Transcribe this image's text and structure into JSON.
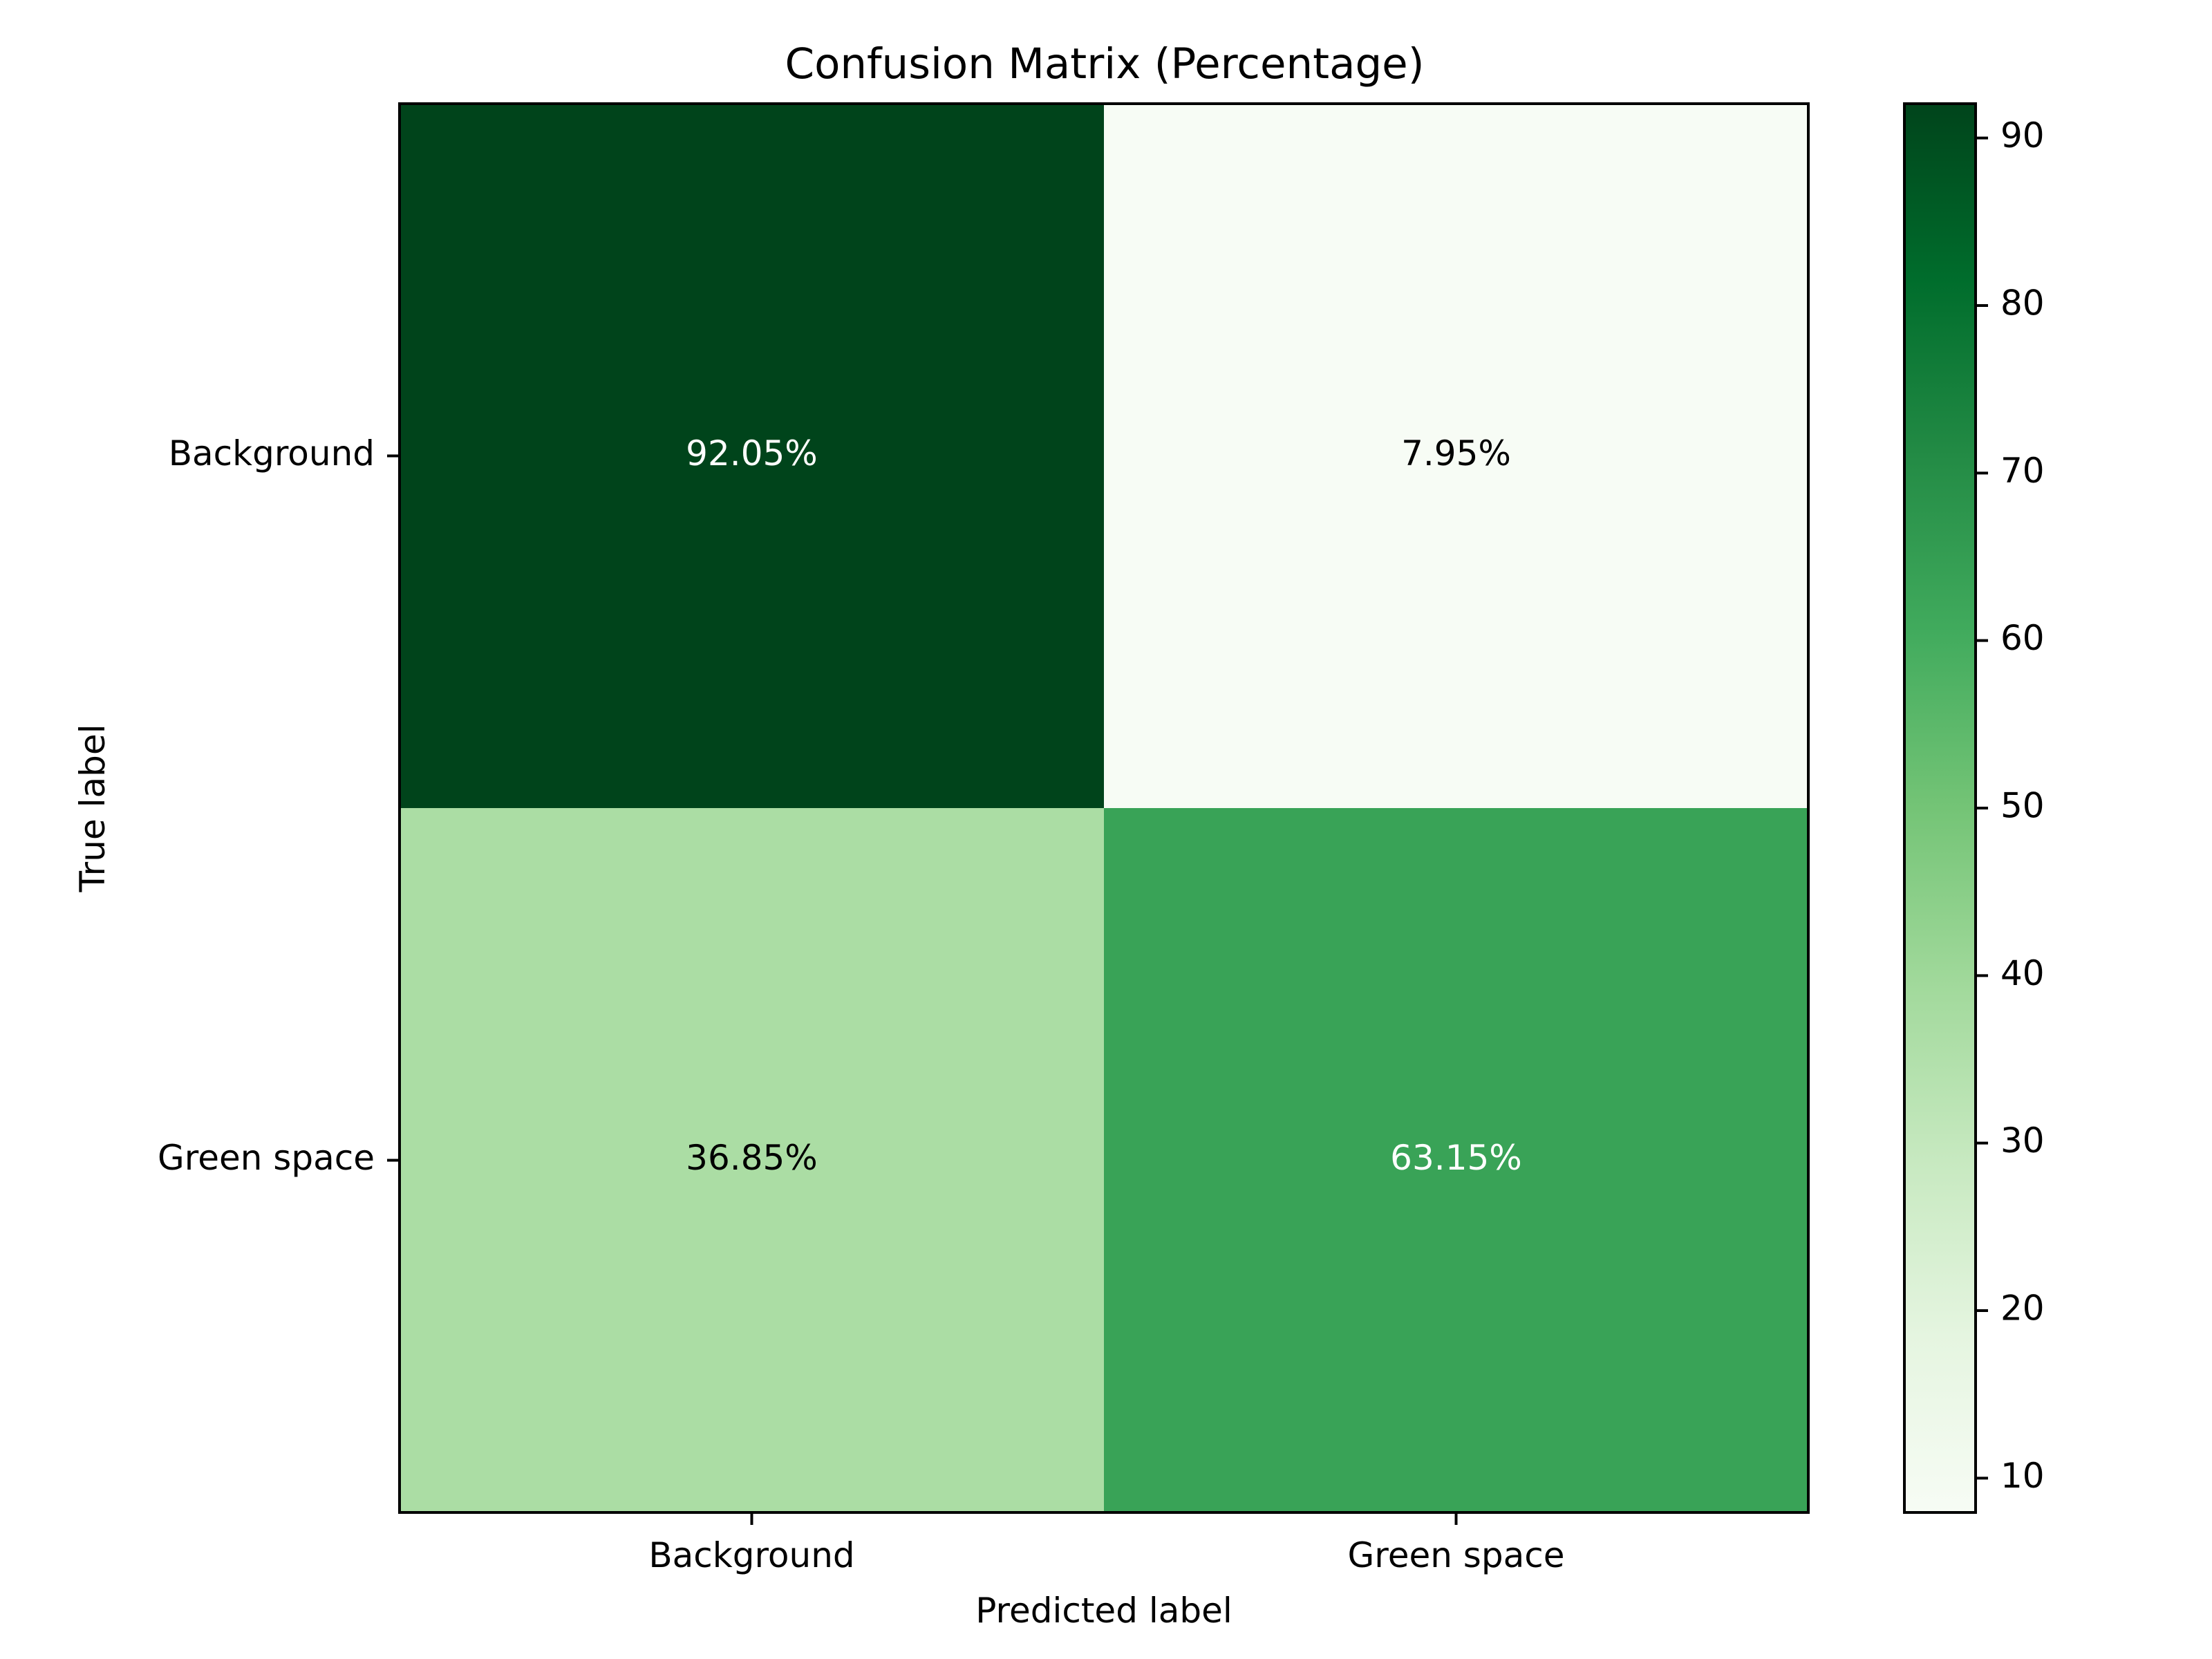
{
  "chart_data": {
    "type": "heatmap",
    "title": "Confusion Matrix (Percentage)",
    "xlabel": "Predicted label",
    "ylabel": "True label",
    "x_categories": [
      "Background",
      "Green space"
    ],
    "y_categories": [
      "Background",
      "Green space"
    ],
    "values": [
      [
        92.05,
        7.95
      ],
      [
        36.85,
        63.15
      ]
    ],
    "cell_labels": [
      [
        "92.05%",
        "7.95%"
      ],
      [
        "36.85%",
        "63.15%"
      ]
    ],
    "colormap": "Greens",
    "colorbar": {
      "range": [
        7.95,
        92.05
      ],
      "ticks": [
        10,
        20,
        30,
        40,
        50,
        60,
        70,
        80,
        90
      ]
    },
    "colors": {
      "dark_text": "#000000",
      "light_text": "#ffffff",
      "ramp": [
        "#f7fcf5",
        "#e5f5e0",
        "#c7e9c0",
        "#a1d99b",
        "#74c476",
        "#41ab5d",
        "#238b45",
        "#006d2c",
        "#00441b"
      ]
    }
  }
}
